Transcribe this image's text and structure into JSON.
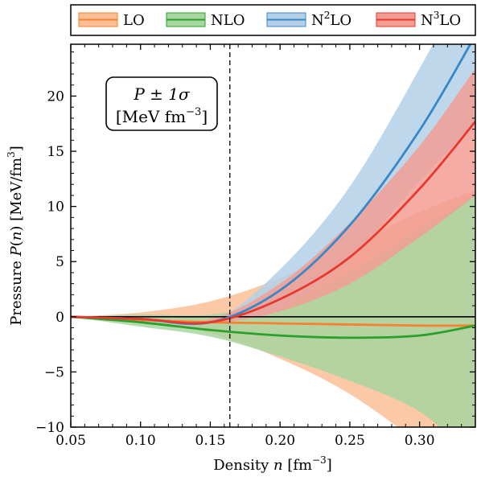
{
  "chart_data": {
    "type": "area",
    "xlabel": "Density n [fm⁻³]",
    "ylabel": "Pressure P(n) [MeV/fm³]",
    "xlim": [
      0.05,
      0.34
    ],
    "ylim": [
      -10,
      24.7
    ],
    "x_ticks": [
      0.05,
      0.1,
      0.15,
      0.2,
      0.25,
      0.3
    ],
    "x_tick_labels": [
      "0.05",
      "0.10",
      "0.15",
      "0.20",
      "0.25",
      "0.30"
    ],
    "y_ticks": [
      -10,
      -5,
      0,
      5,
      10,
      15,
      20
    ],
    "y_tick_labels": [
      "−10",
      "−5",
      "0",
      "5",
      "10",
      "15",
      "20"
    ],
    "grid": false,
    "legend_position": "top (outside, above plot)",
    "annotation": {
      "line1": "P ± 1σ",
      "line2": "[MeV fm⁻³]"
    },
    "reference_lines": [
      {
        "axis": "x",
        "value": 0.164,
        "style": "dashed",
        "label": ""
      },
      {
        "axis": "y",
        "value": 0,
        "style": "solid",
        "label": ""
      }
    ],
    "series": [
      {
        "name": "LO",
        "color": "#f58231",
        "band_color": "#fbbf96",
        "x": [
          0.05,
          0.1,
          0.15,
          0.2,
          0.25,
          0.3,
          0.34
        ],
        "mean": [
          0,
          -0.3,
          -0.5,
          -0.6,
          -0.7,
          -0.8,
          -0.8
        ],
        "lower": [
          0,
          -0.4,
          -1.5,
          -3.8,
          -7.0,
          -11.5,
          -15.5
        ],
        "upper": [
          0,
          0.4,
          1.4,
          3.5,
          6.5,
          9.5,
          11.5
        ]
      },
      {
        "name": "NLO",
        "color": "#2ca02c",
        "band_color": "#a8d5a0",
        "x": [
          0.05,
          0.1,
          0.15,
          0.2,
          0.25,
          0.3,
          0.34
        ],
        "mean": [
          0,
          -0.5,
          -1.2,
          -1.7,
          -1.9,
          -1.7,
          -0.8
        ],
        "lower": [
          0,
          -0.9,
          -1.8,
          -3.6,
          -5.8,
          -8.6,
          -13.0
        ],
        "upper": [
          0,
          0.2,
          0.2,
          1.5,
          4.0,
          8.0,
          11.0
        ]
      },
      {
        "name": "N²LO",
        "color": "#3a87c8",
        "band_color": "#b3d0e8",
        "x": [
          0.05,
          0.1,
          0.15,
          0.2,
          0.25,
          0.3,
          0.34
        ],
        "mean": [
          0,
          -0.2,
          -0.5,
          2.4,
          8.3,
          16.9,
          25.5
        ],
        "lower": [
          0,
          -0.2,
          -0.5,
          0.8,
          5.2,
          12.3,
          17.5
        ],
        "upper": [
          0,
          -0.2,
          -0.5,
          4.3,
          11.8,
          22.5,
          32.0
        ]
      },
      {
        "name": "N³LO",
        "color": "#e8392f",
        "band_color": "#f29d94",
        "x": [
          0.05,
          0.1,
          0.15,
          0.2,
          0.25,
          0.3,
          0.34
        ],
        "mean": [
          0,
          -0.2,
          -0.5,
          1.6,
          5.4,
          11.6,
          17.7
        ],
        "lower": [
          0,
          -0.3,
          -0.6,
          0.5,
          3.0,
          7.2,
          11.0
        ],
        "upper": [
          0,
          -0.1,
          -0.2,
          3.0,
          8.5,
          15.5,
          22.5
        ]
      }
    ]
  }
}
